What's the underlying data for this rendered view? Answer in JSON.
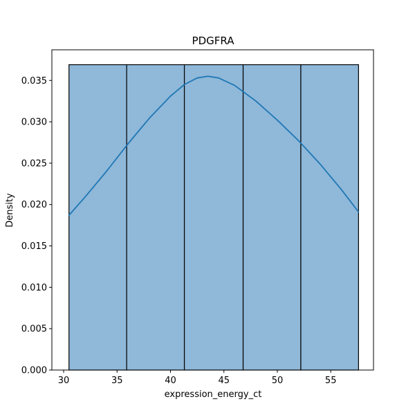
{
  "chart_data": {
    "type": "bar",
    "subtype": "histogram_with_kde",
    "title": "PDGFRA",
    "xlabel": "expression_energy_ct",
    "ylabel": "Density",
    "xlim": [
      28.9,
      59.0
    ],
    "ylim": [
      0,
      0.0387
    ],
    "x_ticks": [
      30,
      35,
      40,
      45,
      50,
      55
    ],
    "y_ticks": [
      0.0,
      0.005,
      0.01,
      0.015,
      0.02,
      0.025,
      0.03,
      0.035
    ],
    "y_tick_labels": [
      "0.000",
      "0.005",
      "0.010",
      "0.015",
      "0.020",
      "0.025",
      "0.030",
      "0.035"
    ],
    "bins": [
      {
        "x0": 30.5,
        "x1": 35.9,
        "density": 0.0369
      },
      {
        "x0": 35.9,
        "x1": 41.3,
        "density": 0.0369
      },
      {
        "x0": 41.3,
        "x1": 46.8,
        "density": 0.0369
      },
      {
        "x0": 46.8,
        "x1": 52.2,
        "density": 0.0369
      },
      {
        "x0": 52.2,
        "x1": 57.6,
        "density": 0.0369
      }
    ],
    "kde": {
      "x": [
        30.5,
        32.0,
        34.0,
        36.0,
        38.0,
        40.0,
        41.3,
        42.5,
        43.5,
        44.5,
        46.0,
        48.0,
        50.0,
        52.0,
        54.0,
        56.0,
        57.6
      ],
      "y": [
        0.0187,
        0.0209,
        0.024,
        0.0273,
        0.0304,
        0.0331,
        0.0345,
        0.0353,
        0.0355,
        0.0353,
        0.0344,
        0.0325,
        0.0302,
        0.0277,
        0.0249,
        0.0218,
        0.0191
      ]
    },
    "grid": false,
    "legend": false,
    "colors": {
      "bar_fill": "#8fb8d9",
      "bar_edge": "#000000",
      "kde_line": "#1f77b4",
      "axes": "#000000"
    }
  }
}
